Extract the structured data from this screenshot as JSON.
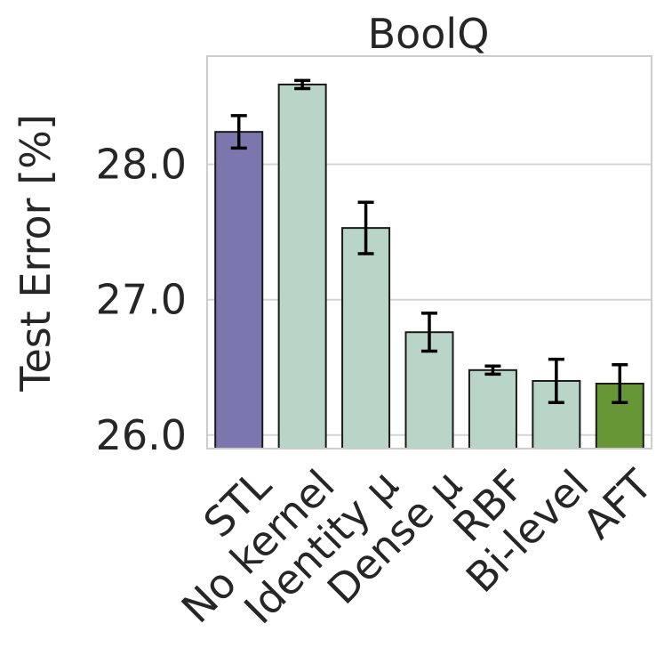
{
  "chart_data": {
    "type": "bar",
    "title": "BoolQ",
    "ylabel": "Test Error [%]",
    "xlabel": "",
    "ylim": [
      25.9,
      28.8
    ],
    "yticks": [
      26.0,
      27.0,
      28.0
    ],
    "ytick_labels": [
      "26.0",
      "27.0",
      "28.0"
    ],
    "grid": "horizontal",
    "categories": [
      "STL",
      "No kernel",
      "Identity μ",
      "Dense μ",
      "RBF",
      "Bi-level",
      "AFT"
    ],
    "values": [
      28.24,
      28.59,
      27.53,
      26.76,
      26.48,
      26.4,
      26.38
    ],
    "errors": [
      0.12,
      0.03,
      0.19,
      0.14,
      0.03,
      0.16,
      0.14
    ],
    "colors": [
      "#7b77ae",
      "#b9d5c7",
      "#b9d5c7",
      "#b9d5c7",
      "#b9d5c7",
      "#b9d5c7",
      "#669635"
    ]
  }
}
